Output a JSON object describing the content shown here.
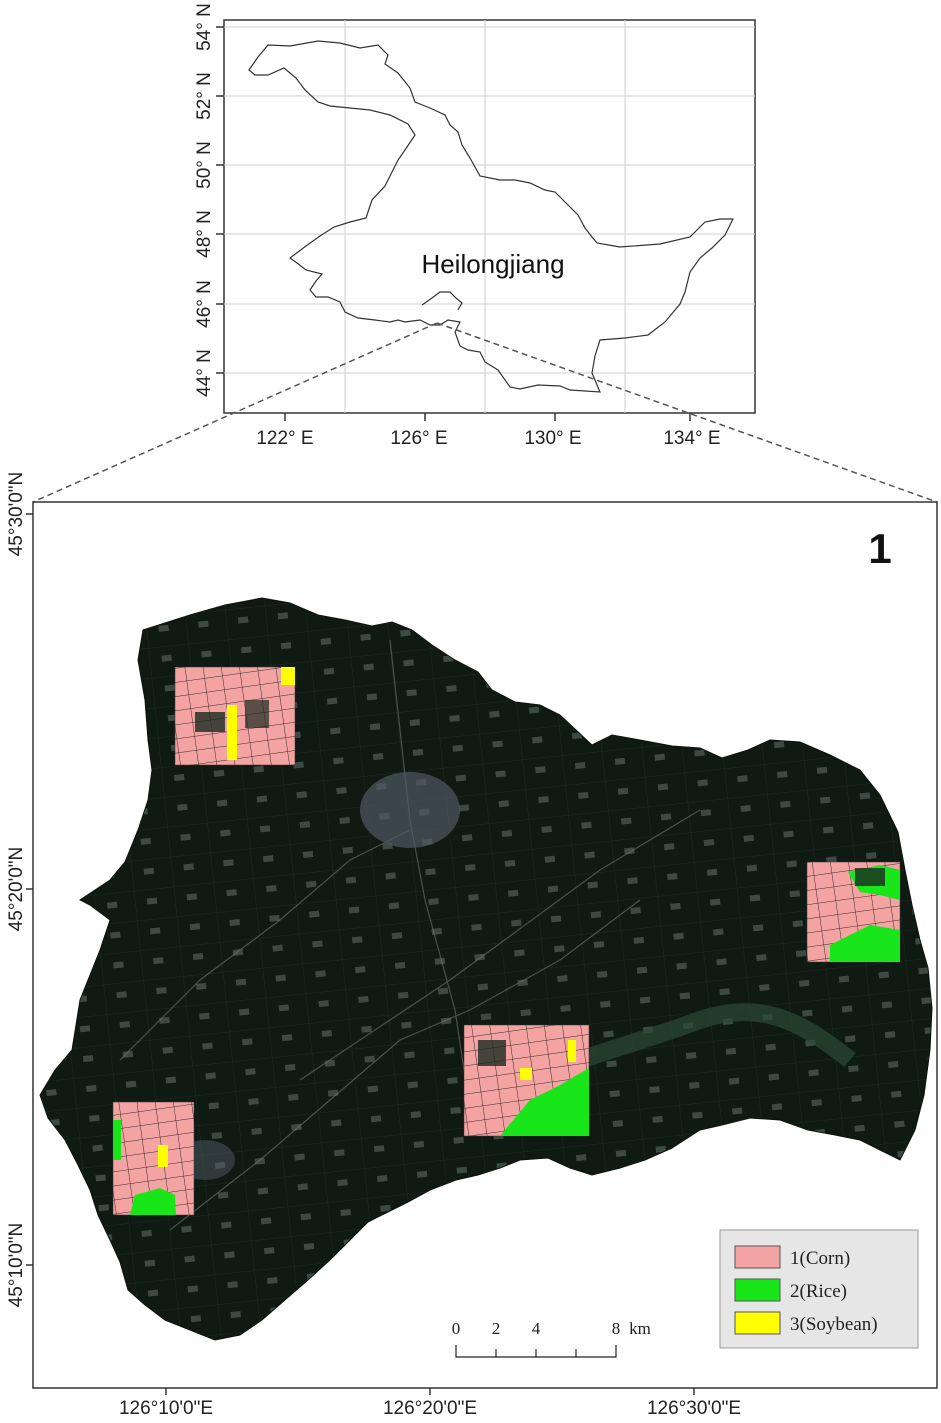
{
  "overview_map": {
    "label": "Heilongjiang",
    "lat_ticks": [
      "54° N",
      "52° N",
      "50° N",
      "48° N",
      "46° N",
      "44° N"
    ],
    "lon_ticks": [
      "122° E",
      "126° E",
      "130° E",
      "134° E"
    ]
  },
  "detail_map": {
    "panel_number": "1",
    "lat_ticks": [
      "45°30'0\"N",
      "45°20'0\"N",
      "45°10'0\"N"
    ],
    "lon_ticks": [
      "126°10'0\"E",
      "126°20'0\"E",
      "126°30'0\"E"
    ],
    "scale_bar": {
      "labels": [
        "0",
        "2",
        "4",
        "8"
      ],
      "unit": "km"
    },
    "legend": [
      {
        "label": "1(Corn)",
        "color": "#f4a3a3"
      },
      {
        "label": "2(Rice)",
        "color": "#19e619"
      },
      {
        "label": "3(Soybean)",
        "color": "#ffff00"
      }
    ],
    "imagery_color": "#0f1a12"
  }
}
